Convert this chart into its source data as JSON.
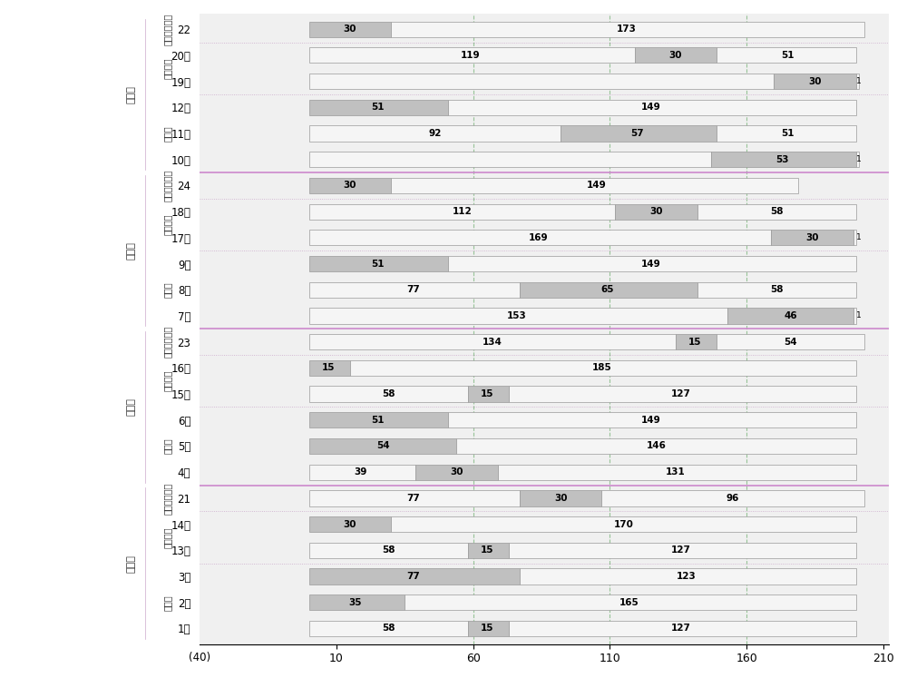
{
  "rows": [
    {
      "label": "22",
      "group1": "北进口",
      "group2": "非机动车行人",
      "segs": [
        [
          0,
          30,
          "g"
        ],
        [
          30,
          173,
          "w"
        ]
      ]
    },
    {
      "label": "20直",
      "group1": "北进口",
      "group2": "非机动车",
      "segs": [
        [
          0,
          119,
          "w"
        ],
        [
          119,
          30,
          "g"
        ],
        [
          149,
          51,
          "w"
        ]
      ]
    },
    {
      "label": "19左",
      "group1": "北进口",
      "group2": "非机动车",
      "segs": [
        [
          0,
          170,
          "w"
        ],
        [
          170,
          30,
          "g"
        ],
        [
          200,
          1,
          "w"
        ]
      ]
    },
    {
      "label": "12右",
      "group1": "北进口",
      "group2": "机动车",
      "segs": [
        [
          0,
          51,
          "g"
        ],
        [
          51,
          149,
          "w"
        ]
      ]
    },
    {
      "label": "11直",
      "group1": "北进口",
      "group2": "机动车",
      "segs": [
        [
          0,
          92,
          "w"
        ],
        [
          92,
          57,
          "g"
        ],
        [
          149,
          51,
          "w"
        ]
      ]
    },
    {
      "label": "10左",
      "group1": "北进口",
      "group2": "机动车",
      "segs": [
        [
          0,
          147,
          "w"
        ],
        [
          147,
          53,
          "g"
        ],
        [
          200,
          1,
          "w"
        ]
      ]
    },
    {
      "label": "24",
      "group1": "南进口",
      "group2": "非机动车行人",
      "segs": [
        [
          0,
          30,
          "g"
        ],
        [
          30,
          149,
          "w"
        ]
      ]
    },
    {
      "label": "18直",
      "group1": "南进口",
      "group2": "非机动车",
      "segs": [
        [
          0,
          112,
          "w"
        ],
        [
          112,
          30,
          "g"
        ],
        [
          142,
          58,
          "w"
        ]
      ]
    },
    {
      "label": "17左",
      "group1": "南进口",
      "group2": "非机动车",
      "segs": [
        [
          0,
          169,
          "w"
        ],
        [
          169,
          30,
          "g"
        ],
        [
          199,
          1,
          "w"
        ]
      ]
    },
    {
      "label": "9右",
      "group1": "南进口",
      "group2": "机动车",
      "segs": [
        [
          0,
          51,
          "g"
        ],
        [
          51,
          149,
          "w"
        ]
      ]
    },
    {
      "label": "8直",
      "group1": "南进口",
      "group2": "机动车",
      "segs": [
        [
          0,
          77,
          "w"
        ],
        [
          77,
          65,
          "g"
        ],
        [
          142,
          58,
          "w"
        ]
      ]
    },
    {
      "label": "7左",
      "group1": "南进口",
      "group2": "机动车",
      "segs": [
        [
          0,
          153,
          "w"
        ],
        [
          153,
          46,
          "g"
        ],
        [
          199,
          1,
          "w"
        ]
      ]
    },
    {
      "label": "23",
      "group1": "东进口",
      "group2": "非机动车行人",
      "segs": [
        [
          0,
          134,
          "w"
        ],
        [
          134,
          15,
          "g"
        ],
        [
          149,
          54,
          "w"
        ]
      ]
    },
    {
      "label": "16直",
      "group1": "东进口",
      "group2": "非机动车",
      "segs": [
        [
          0,
          15,
          "g"
        ],
        [
          15,
          185,
          "w"
        ]
      ]
    },
    {
      "label": "15左",
      "group1": "东进口",
      "group2": "非机动车",
      "segs": [
        [
          0,
          58,
          "w"
        ],
        [
          58,
          15,
          "g"
        ],
        [
          73,
          127,
          "w"
        ]
      ]
    },
    {
      "label": "6右",
      "group1": "东进口",
      "group2": "机动车",
      "segs": [
        [
          0,
          51,
          "g"
        ],
        [
          51,
          149,
          "w"
        ]
      ]
    },
    {
      "label": "5直",
      "group1": "东进口",
      "group2": "机动车",
      "segs": [
        [
          0,
          54,
          "g"
        ],
        [
          54,
          146,
          "w"
        ]
      ]
    },
    {
      "label": "4左",
      "group1": "东进口",
      "group2": "机动车",
      "segs": [
        [
          0,
          39,
          "w"
        ],
        [
          39,
          30,
          "g"
        ],
        [
          69,
          131,
          "w"
        ]
      ]
    },
    {
      "label": "21",
      "group1": "西进口",
      "group2": "非机动车行人",
      "segs": [
        [
          0,
          77,
          "w"
        ],
        [
          77,
          30,
          "g"
        ],
        [
          107,
          96,
          "w"
        ]
      ]
    },
    {
      "label": "14直",
      "group1": "西进口",
      "group2": "非机动车",
      "segs": [
        [
          0,
          30,
          "g"
        ],
        [
          30,
          170,
          "w"
        ]
      ]
    },
    {
      "label": "13左",
      "group1": "西进口",
      "group2": "非机动车",
      "segs": [
        [
          0,
          58,
          "w"
        ],
        [
          58,
          15,
          "g"
        ],
        [
          73,
          127,
          "w"
        ]
      ]
    },
    {
      "label": "3右",
      "group1": "西进口",
      "group2": "机动车",
      "segs": [
        [
          0,
          77,
          "g"
        ],
        [
          77,
          123,
          "w"
        ]
      ]
    },
    {
      "label": "2直",
      "group1": "西进口",
      "group2": "机动车",
      "segs": [
        [
          0,
          35,
          "g"
        ],
        [
          35,
          165,
          "w"
        ]
      ]
    },
    {
      "label": "1左",
      "group1": "西进口",
      "group2": "机动车",
      "segs": [
        [
          0,
          58,
          "w"
        ],
        [
          58,
          15,
          "g"
        ],
        [
          73,
          127,
          "w"
        ]
      ]
    }
  ],
  "annotations": [
    {
      "label": "22",
      "items": [
        {
          "x": 15,
          "v": "30"
        },
        {
          "x": 116,
          "v": "173"
        }
      ]
    },
    {
      "label": "20直",
      "items": [
        {
          "x": 59,
          "v": "119"
        },
        {
          "x": 134,
          "v": "30"
        },
        {
          "x": 175,
          "v": "51"
        }
      ]
    },
    {
      "label": "19左",
      "items": [
        {
          "x": 185,
          "v": "30"
        },
        {
          "x": 201,
          "v": "1",
          "small": true
        }
      ]
    },
    {
      "label": "12右",
      "items": [
        {
          "x": 25,
          "v": "51"
        },
        {
          "x": 125,
          "v": "149"
        }
      ]
    },
    {
      "label": "11直",
      "items": [
        {
          "x": 46,
          "v": "92"
        },
        {
          "x": 120,
          "v": "57"
        },
        {
          "x": 175,
          "v": "51"
        }
      ]
    },
    {
      "label": "10左",
      "items": [
        {
          "x": 173,
          "v": "53"
        },
        {
          "x": 201,
          "v": "1",
          "small": true
        }
      ]
    },
    {
      "label": "24",
      "items": [
        {
          "x": 15,
          "v": "30"
        },
        {
          "x": 105,
          "v": "149"
        }
      ]
    },
    {
      "label": "18直",
      "items": [
        {
          "x": 56,
          "v": "112"
        },
        {
          "x": 127,
          "v": "30"
        },
        {
          "x": 171,
          "v": "58"
        }
      ]
    },
    {
      "label": "17左",
      "items": [
        {
          "x": 84,
          "v": "169"
        },
        {
          "x": 184,
          "v": "30"
        },
        {
          "x": 201,
          "v": "1",
          "small": true
        }
      ]
    },
    {
      "label": "9右",
      "items": [
        {
          "x": 25,
          "v": "51"
        },
        {
          "x": 125,
          "v": "149"
        }
      ]
    },
    {
      "label": "8直",
      "items": [
        {
          "x": 38,
          "v": "77"
        },
        {
          "x": 109,
          "v": "65"
        },
        {
          "x": 171,
          "v": "58"
        }
      ]
    },
    {
      "label": "7左",
      "items": [
        {
          "x": 76,
          "v": "153"
        },
        {
          "x": 176,
          "v": "46"
        },
        {
          "x": 201,
          "v": "1",
          "small": true
        }
      ]
    },
    {
      "label": "23",
      "items": [
        {
          "x": 67,
          "v": "134"
        },
        {
          "x": 141,
          "v": "15"
        },
        {
          "x": 176,
          "v": "54"
        }
      ]
    },
    {
      "label": "16直",
      "items": [
        {
          "x": 7,
          "v": "15"
        },
        {
          "x": 107,
          "v": "185"
        }
      ]
    },
    {
      "label": "15左",
      "items": [
        {
          "x": 29,
          "v": "58"
        },
        {
          "x": 65,
          "v": "15"
        },
        {
          "x": 136,
          "v": "127"
        }
      ]
    },
    {
      "label": "6右",
      "items": [
        {
          "x": 25,
          "v": "51"
        },
        {
          "x": 125,
          "v": "149"
        }
      ]
    },
    {
      "label": "5直",
      "items": [
        {
          "x": 27,
          "v": "54"
        },
        {
          "x": 127,
          "v": "146"
        }
      ]
    },
    {
      "label": "4左",
      "items": [
        {
          "x": 19,
          "v": "39"
        },
        {
          "x": 54,
          "v": "30"
        },
        {
          "x": 134,
          "v": "131"
        }
      ]
    },
    {
      "label": "21",
      "items": [
        {
          "x": 38,
          "v": "77"
        },
        {
          "x": 92,
          "v": "30"
        },
        {
          "x": 155,
          "v": "96"
        }
      ]
    },
    {
      "label": "14直",
      "items": [
        {
          "x": 15,
          "v": "30"
        },
        {
          "x": 115,
          "v": "170"
        }
      ]
    },
    {
      "label": "13左",
      "items": [
        {
          "x": 29,
          "v": "58"
        },
        {
          "x": 65,
          "v": "15"
        },
        {
          "x": 136,
          "v": "127"
        }
      ]
    },
    {
      "label": "3右",
      "items": [
        {
          "x": 38,
          "v": "77"
        },
        {
          "x": 138,
          "v": "123"
        }
      ]
    },
    {
      "label": "2直",
      "items": [
        {
          "x": 17,
          "v": "35"
        },
        {
          "x": 117,
          "v": "165"
        }
      ]
    },
    {
      "label": "1左",
      "items": [
        {
          "x": 29,
          "v": "58"
        },
        {
          "x": 65,
          "v": "15"
        },
        {
          "x": 136,
          "v": "127"
        }
      ]
    }
  ],
  "gray_color": "#c0c0c0",
  "white_color": "#f5f5f5",
  "bar_edgecolor": "#999999",
  "bar_height": 0.6,
  "xlim_left": -40,
  "xlim_right": 212,
  "xticks": [
    10,
    60,
    110,
    160,
    210
  ],
  "dashed_vlines": [
    60,
    110,
    160
  ],
  "major_sep_after_idx": [
    5,
    11,
    17
  ],
  "figure_bg": "#ffffff",
  "plot_bg": "#f0f0f0",
  "pink_sep_color": "#cc88cc",
  "green_dash_color": "#88bb88",
  "subgroup_sep_color": "#ccaacc",
  "label_font_size": 8.5,
  "annot_font_size": 7.5
}
